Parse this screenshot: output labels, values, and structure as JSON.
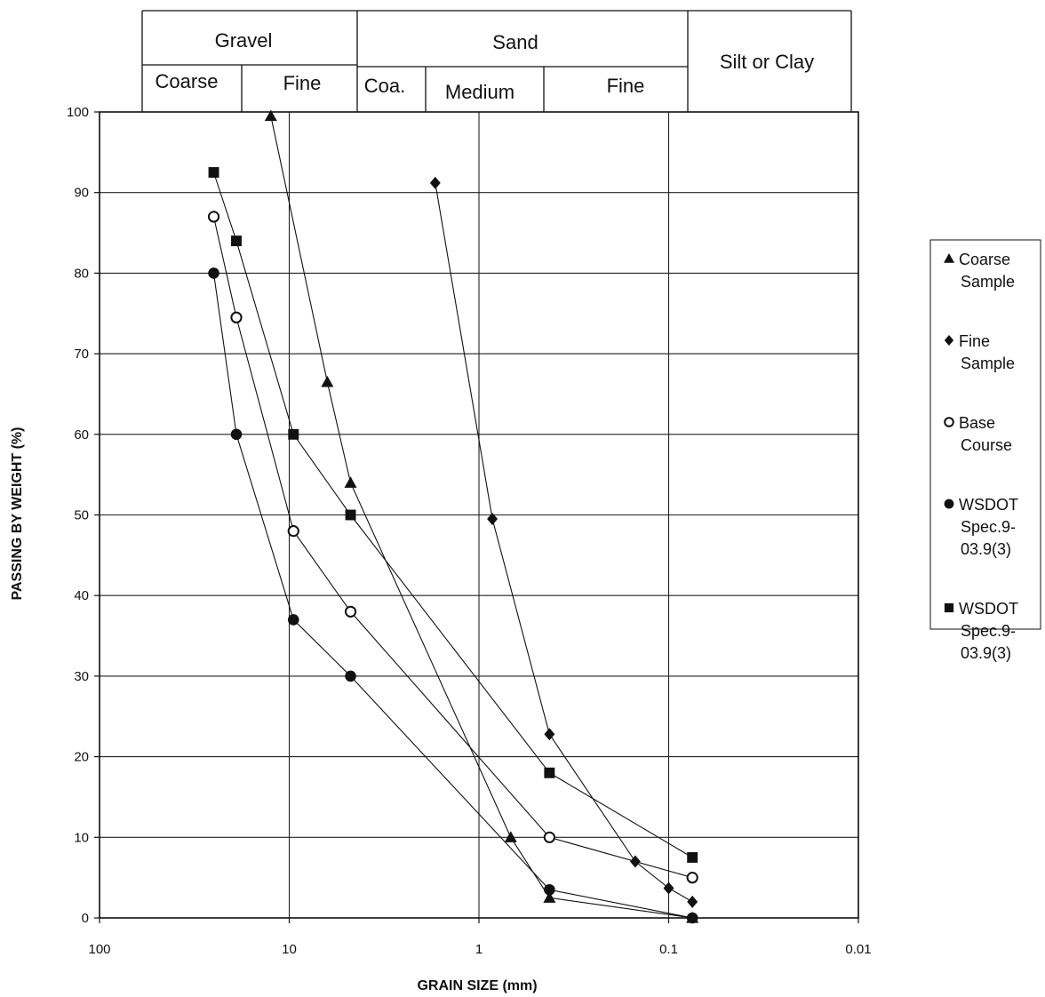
{
  "chart_data": {
    "type": "line",
    "xlabel": "GRAIN SIZE (mm)",
    "ylabel": "PASSING BY WEIGHT (%)",
    "x_scale": "log",
    "x_reversed": true,
    "xlim": [
      100,
      0.01
    ],
    "ylim": [
      0,
      100
    ],
    "x_ticks": [
      "100",
      "10",
      "1",
      "0.1",
      "0.01"
    ],
    "y_ticks": [
      "0",
      "10",
      "20",
      "30",
      "40",
      "50",
      "60",
      "70",
      "80",
      "90",
      "100"
    ],
    "grid": true,
    "legend_position": "right",
    "soil_classes": {
      "gravel": {
        "label": "Gravel",
        "sub": [
          {
            "label": "Coarse"
          },
          {
            "label": "Fine"
          }
        ]
      },
      "sand": {
        "label": "Sand",
        "sub": [
          {
            "label": "Coa."
          },
          {
            "label": "Medium"
          },
          {
            "label": "Fine"
          }
        ]
      },
      "silt": {
        "label": "Silt or Clay"
      }
    },
    "series": [
      {
        "name": "Coarse Sample",
        "legend": [
          "Coarse",
          "Sample"
        ],
        "marker": "triangle",
        "points": [
          [
            12.5,
            99.5
          ],
          [
            6.3,
            66.5
          ],
          [
            4.75,
            54
          ],
          [
            0.68,
            10
          ],
          [
            0.425,
            2.5
          ],
          [
            0.075,
            0
          ]
        ]
      },
      {
        "name": "Fine Sample",
        "legend": [
          "Fine",
          "Sample"
        ],
        "marker": "diamond",
        "points": [
          [
            1.7,
            91.2
          ],
          [
            0.85,
            49.5
          ],
          [
            0.425,
            22.8
          ],
          [
            0.15,
            7
          ],
          [
            0.1,
            3.7
          ],
          [
            0.075,
            2
          ]
        ]
      },
      {
        "name": "Base Course",
        "legend": [
          "Base",
          "Course"
        ],
        "marker": "circle-open",
        "points": [
          [
            25,
            87
          ],
          [
            19,
            74.5
          ],
          [
            9.5,
            48
          ],
          [
            4.75,
            38
          ],
          [
            0.425,
            10
          ],
          [
            0.075,
            5
          ]
        ]
      },
      {
        "name": "WSDOT Spec.9-03.9(3)",
        "legend": [
          "WSDOT",
          "Spec.9-",
          "03.9(3)"
        ],
        "marker": "circle",
        "points": [
          [
            25,
            80
          ],
          [
            19,
            60
          ],
          [
            9.5,
            37
          ],
          [
            4.75,
            30
          ],
          [
            0.425,
            3.5
          ],
          [
            0.075,
            0
          ]
        ]
      },
      {
        "name": "WSDOT Spec.9-03.9(3)",
        "legend": [
          "WSDOT",
          "Spec.9-",
          "03.9(3)"
        ],
        "marker": "square",
        "points": [
          [
            25,
            92.5
          ],
          [
            19,
            84
          ],
          [
            9.5,
            60
          ],
          [
            4.75,
            50
          ],
          [
            0.425,
            18
          ],
          [
            0.075,
            7.5
          ]
        ]
      }
    ]
  }
}
